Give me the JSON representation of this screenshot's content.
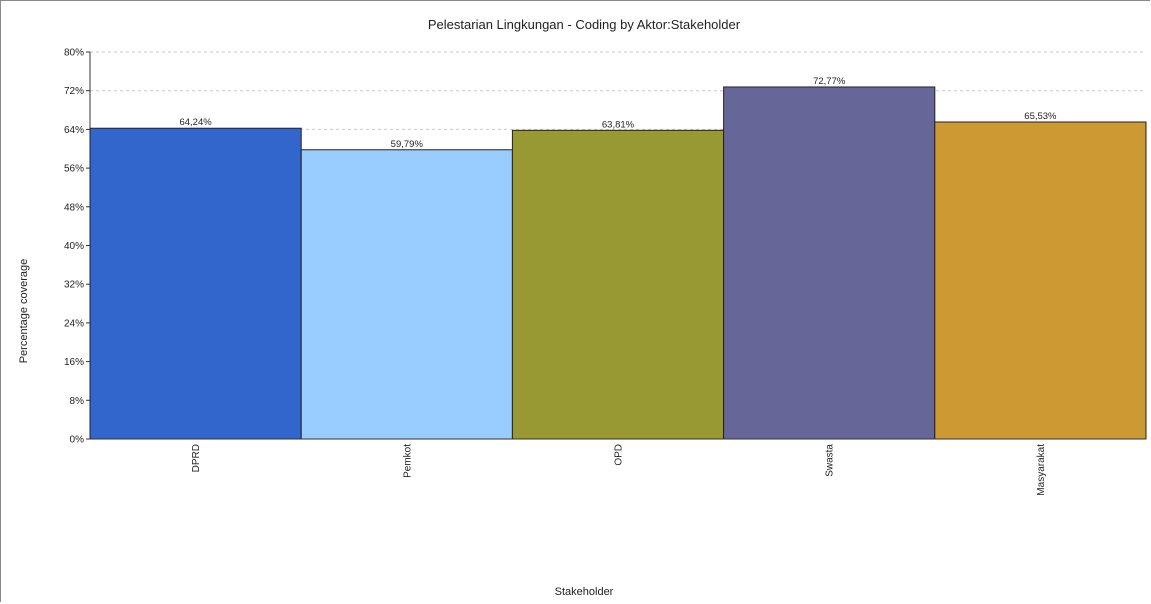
{
  "chart_data": {
    "type": "bar",
    "title": "Pelestarian Lingkungan - Coding by Aktor:Stakeholder",
    "xlabel": "Stakeholder",
    "ylabel": "Percentage coverage",
    "ylim": [
      0,
      80
    ],
    "yticks": [
      0,
      8,
      16,
      24,
      32,
      40,
      48,
      56,
      64,
      72,
      80
    ],
    "ytick_labels": [
      "0%",
      "8%",
      "16%",
      "24%",
      "32%",
      "40%",
      "48%",
      "56%",
      "64%",
      "72%",
      "80%"
    ],
    "grid": "horizontal dashed",
    "categories": [
      "DPRD",
      "Pemkot",
      "OPD",
      "Swasta",
      "Masyarakat"
    ],
    "values": [
      64.24,
      59.79,
      63.81,
      72.77,
      65.53
    ],
    "value_labels": [
      "64,24%",
      "59,79%",
      "63,81%",
      "72,77%",
      "65,53%"
    ],
    "colors": [
      "#3366cc",
      "#99ccff",
      "#999933",
      "#666699",
      "#cc9933"
    ]
  }
}
